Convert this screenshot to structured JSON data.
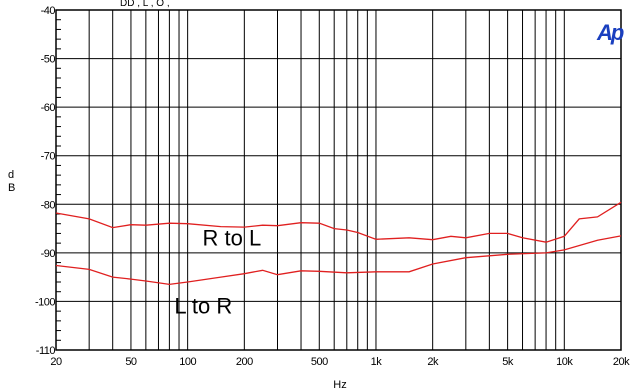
{
  "header_fragment": "DD        ,     L           ,     O                 ,",
  "logo_text": "Ap",
  "chart_data": {
    "type": "line",
    "xscale": "log",
    "xlim": [
      20,
      20000
    ],
    "ylim": [
      -110,
      -40
    ],
    "grid": true,
    "xlabel": "Hz",
    "ylabel": "d\nB",
    "x_ticks": [
      {
        "value": 20,
        "label": "20"
      },
      {
        "value": 50,
        "label": "50"
      },
      {
        "value": 100,
        "label": "100"
      },
      {
        "value": 200,
        "label": "200"
      },
      {
        "value": 500,
        "label": "500"
      },
      {
        "value": 1000,
        "label": "1k"
      },
      {
        "value": 2000,
        "label": "2k"
      },
      {
        "value": 5000,
        "label": "5k"
      },
      {
        "value": 10000,
        "label": "10k"
      },
      {
        "value": 20000,
        "label": "20k"
      }
    ],
    "y_ticks": [
      {
        "value": -40,
        "label": "-40"
      },
      {
        "value": -50,
        "label": "-50"
      },
      {
        "value": -60,
        "label": "-60"
      },
      {
        "value": -70,
        "label": "-70"
      },
      {
        "value": -80,
        "label": "-80"
      },
      {
        "value": -90,
        "label": "-90"
      },
      {
        "value": -100,
        "label": "-100"
      },
      {
        "value": -110,
        "label": "-110"
      }
    ],
    "series": [
      {
        "name": "R to L",
        "color": "#e02020",
        "points": [
          [
            20,
            -81.8
          ],
          [
            30,
            -83.0
          ],
          [
            40,
            -84.8
          ],
          [
            50,
            -84.2
          ],
          [
            60,
            -84.3
          ],
          [
            80,
            -83.9
          ],
          [
            100,
            -84.0
          ],
          [
            150,
            -84.6
          ],
          [
            200,
            -84.7
          ],
          [
            250,
            -84.3
          ],
          [
            300,
            -84.4
          ],
          [
            400,
            -83.8
          ],
          [
            500,
            -83.9
          ],
          [
            600,
            -85.0
          ],
          [
            700,
            -85.3
          ],
          [
            800,
            -85.8
          ],
          [
            1000,
            -87.2
          ],
          [
            1500,
            -86.9
          ],
          [
            2000,
            -87.3
          ],
          [
            2500,
            -86.6
          ],
          [
            3000,
            -86.9
          ],
          [
            4000,
            -86.0
          ],
          [
            5000,
            -86.0
          ],
          [
            6000,
            -86.9
          ],
          [
            8000,
            -87.8
          ],
          [
            10000,
            -86.6
          ],
          [
            12000,
            -83.0
          ],
          [
            15000,
            -82.6
          ],
          [
            20000,
            -79.6
          ]
        ],
        "label_anchor": [
          120,
          -88.5
        ]
      },
      {
        "name": "L to R",
        "color": "#e02020",
        "points": [
          [
            20,
            -92.6
          ],
          [
            30,
            -93.4
          ],
          [
            40,
            -95.0
          ],
          [
            50,
            -95.4
          ],
          [
            60,
            -95.8
          ],
          [
            80,
            -96.5
          ],
          [
            100,
            -96.0
          ],
          [
            150,
            -95.0
          ],
          [
            200,
            -94.3
          ],
          [
            250,
            -93.6
          ],
          [
            300,
            -94.5
          ],
          [
            400,
            -93.7
          ],
          [
            500,
            -93.8
          ],
          [
            700,
            -94.1
          ],
          [
            1000,
            -93.9
          ],
          [
            1500,
            -93.9
          ],
          [
            2000,
            -92.3
          ],
          [
            3000,
            -91.0
          ],
          [
            5000,
            -90.3
          ],
          [
            8000,
            -90.0
          ],
          [
            10000,
            -89.4
          ],
          [
            15000,
            -87.4
          ],
          [
            20000,
            -86.5
          ]
        ],
        "label_anchor": [
          85,
          -102.5
        ]
      }
    ]
  }
}
